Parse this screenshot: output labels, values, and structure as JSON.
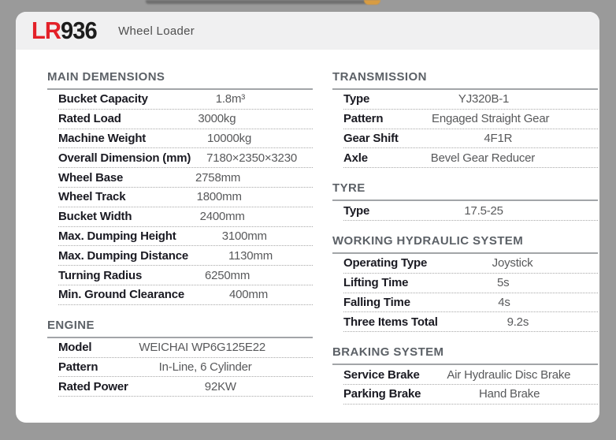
{
  "header": {
    "model_prefix": "LR",
    "model_number": "936",
    "subtitle": "Wheel Loader"
  },
  "colors": {
    "accent_red": "#e32129",
    "page_background": "#9a9a9a",
    "card_background": "#ffffff",
    "header_band": "#f0f0f1",
    "section_title": "#5c6167",
    "label_text": "#1a1a22",
    "value_text": "#58595b"
  },
  "columns": [
    {
      "sections": [
        {
          "title": "MAIN DEMENSIONS",
          "rows": [
            {
              "label": "Bucket Capacity",
              "value": "1.8m³"
            },
            {
              "label": "Rated Load",
              "value": "3000kg"
            },
            {
              "label": "Machine Weight",
              "value": "10000kg"
            },
            {
              "label": "Overall Dimension (mm)",
              "value": "7180×2350×3230"
            },
            {
              "label": "Wheel Base",
              "value": "2758mm"
            },
            {
              "label": "Wheel Track",
              "value": "1800mm"
            },
            {
              "label": "Bucket Width",
              "value": "2400mm"
            },
            {
              "label": "Max. Dumping Height",
              "value": "3100mm"
            },
            {
              "label": "Max. Dumping Distance",
              "value": "1130mm"
            },
            {
              "label": "Turning Radius",
              "value": "6250mm"
            },
            {
              "label": "Min. Ground Clearance",
              "value": "400mm"
            }
          ]
        },
        {
          "title": "ENGINE",
          "rows": [
            {
              "label": "Model",
              "value": "WEICHAI WP6G125E22"
            },
            {
              "label": "Pattern",
              "value": "In-Line, 6 Cylinder"
            },
            {
              "label": "Rated Power",
              "value": "92KW"
            }
          ]
        }
      ]
    },
    {
      "sections": [
        {
          "title": "TRANSMISSION",
          "rows": [
            {
              "label": "Type",
              "value": "YJ320B-1"
            },
            {
              "label": "Pattern",
              "value": "Engaged Straight Gear"
            },
            {
              "label": "Gear Shift",
              "value": "4F1R"
            },
            {
              "label": "Axle",
              "value": "Bevel Gear Reducer"
            }
          ]
        },
        {
          "title": "TYRE",
          "rows": [
            {
              "label": "Type",
              "value": "17.5-25"
            }
          ]
        },
        {
          "title": "WORKING HYDRAULIC SYSTEM",
          "rows": [
            {
              "label": "Operating Type",
              "value": "Joystick"
            },
            {
              "label": "Lifting Time",
              "value": "5s"
            },
            {
              "label": "Falling Time",
              "value": "4s"
            },
            {
              "label": "Three Items Total",
              "value": "9.2s"
            }
          ]
        },
        {
          "title": "BRAKING SYSTEM",
          "rows": [
            {
              "label": "Service Brake",
              "value": "Air Hydraulic Disc Brake"
            },
            {
              "label": "Parking Brake",
              "value": "Hand Brake"
            }
          ]
        }
      ]
    }
  ]
}
